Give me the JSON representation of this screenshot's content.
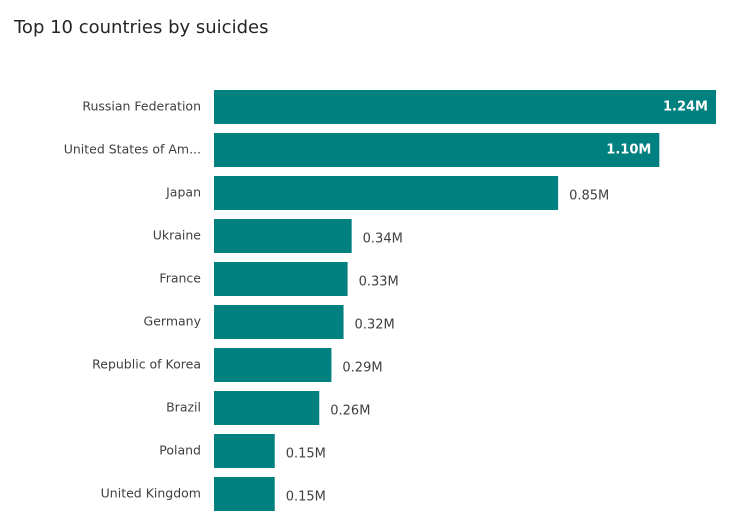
{
  "chart_data": {
    "type": "bar",
    "orientation": "horizontal",
    "title": "Top 10 countries by suicides",
    "categories": [
      "Russian Federation",
      "United States of Am...",
      "Japan",
      "Ukraine",
      "France",
      "Germany",
      "Republic of Korea",
      "Brazil",
      "Poland",
      "United Kingdom"
    ],
    "values": [
      1.24,
      1.1,
      0.85,
      0.34,
      0.33,
      0.32,
      0.29,
      0.26,
      0.15,
      0.15
    ],
    "value_labels": [
      "1.24M",
      "1.10M",
      "0.85M",
      "0.34M",
      "0.33M",
      "0.32M",
      "0.29M",
      "0.26M",
      "0.15M",
      "0.15M"
    ],
    "unit": "M",
    "xlim": [
      0,
      1.24
    ],
    "grid": false,
    "legend": "none",
    "bar_color": "#00807e"
  }
}
